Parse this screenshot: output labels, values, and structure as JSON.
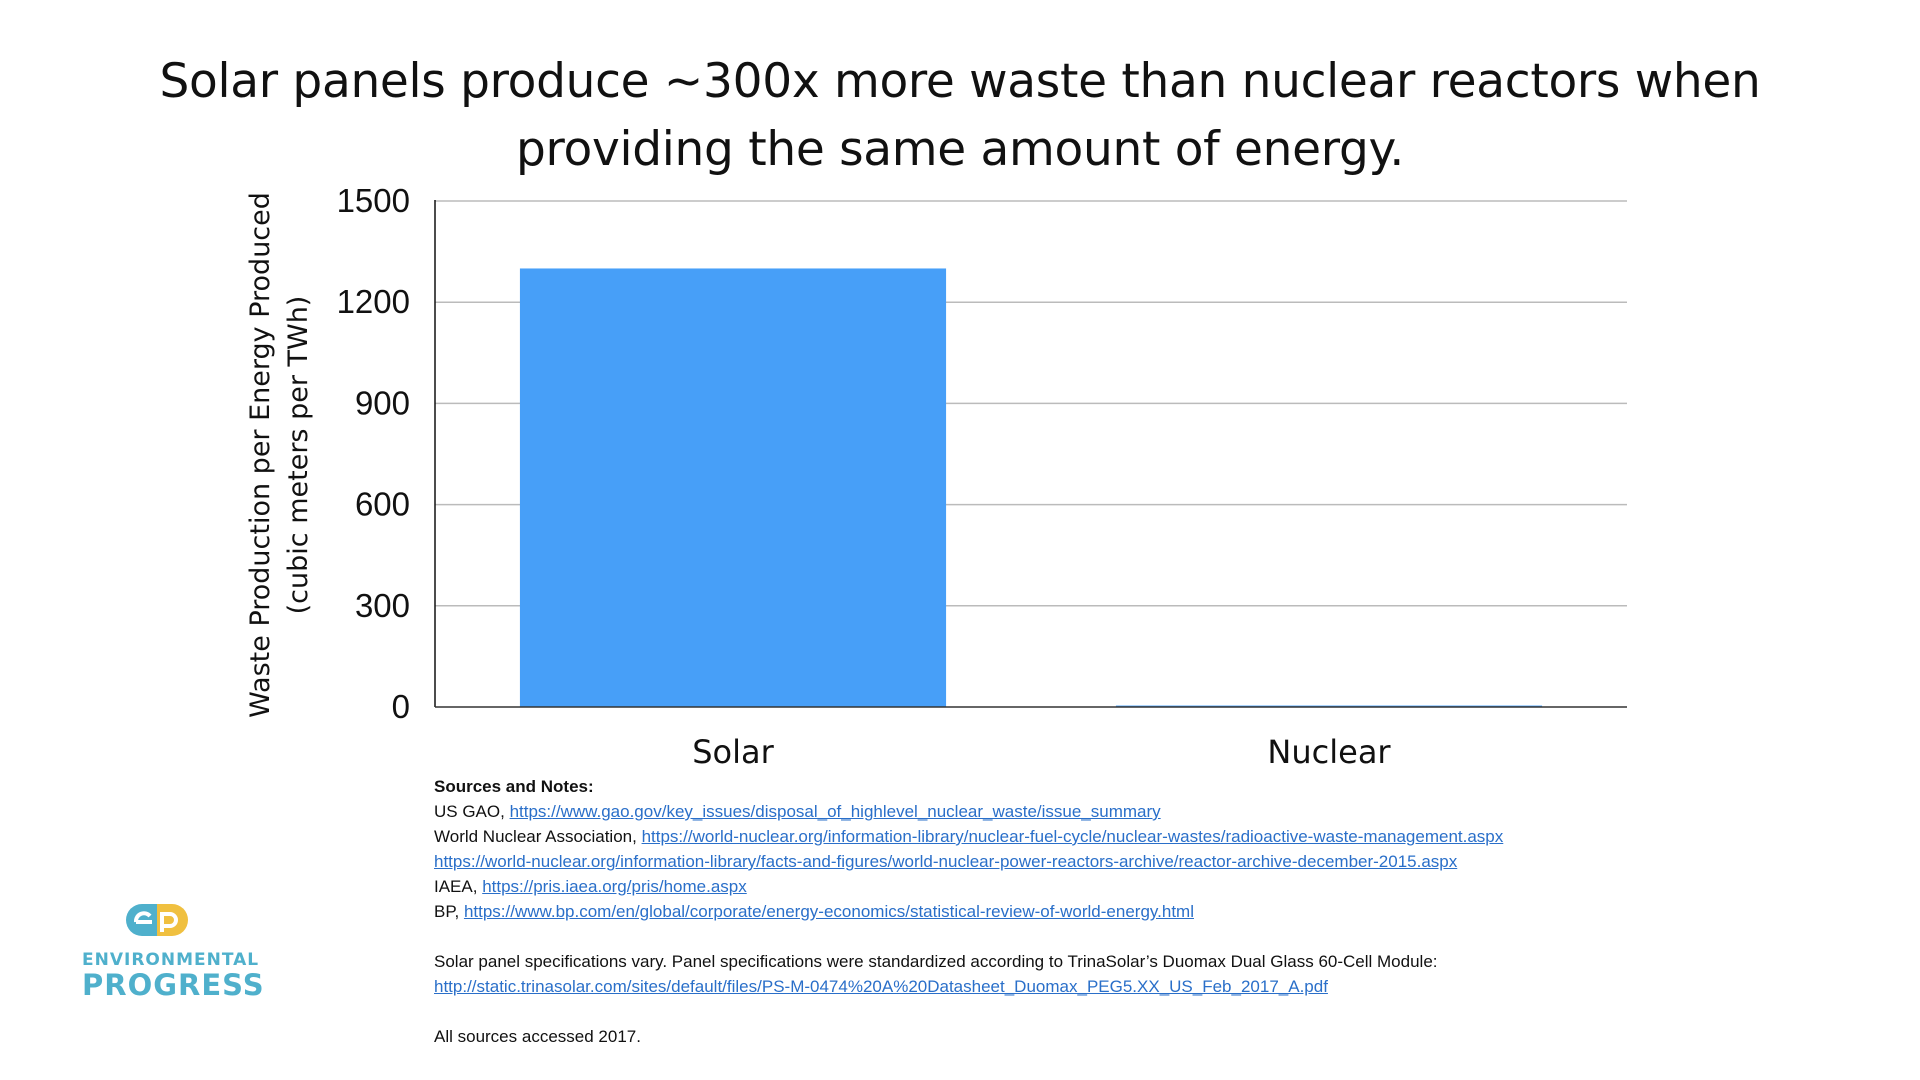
{
  "chart_data": {
    "type": "bar",
    "title": "Solar panels produce ~300x more waste than nuclear reactors when providing the same amount of energy.",
    "title_lines": [
      "Solar panels produce ~300x more waste than nuclear reactors when",
      "providing the same amount of energy."
    ],
    "categories": [
      "Solar",
      "Nuclear"
    ],
    "values": [
      1300,
      4.3
    ],
    "ylabel_lines": [
      "Waste Production per Energy Produced",
      "(cubic meters per TWh)"
    ],
    "xlabel": "",
    "ylim": [
      0,
      1500
    ],
    "yticks": [
      "0",
      "300",
      "600",
      "900",
      "1200",
      "1500"
    ],
    "grid": true,
    "bar_color": "#479ff8"
  },
  "notes": {
    "heading": "Sources and Notes:",
    "lines": [
      {
        "prefix": "US GAO, ",
        "link": "https://www.gao.gov/key_issues/disposal_of_highlevel_nuclear_waste/issue_summary"
      },
      {
        "prefix": "World Nuclear Association, ",
        "link": "https://world-nuclear.org/information-library/nuclear-fuel-cycle/nuclear-wastes/radioactive-waste-management.aspx"
      },
      {
        "prefix": "",
        "link": "https://world-nuclear.org/information-library/facts-and-figures/world-nuclear-power-reactors-archive/reactor-archive-december-2015.aspx"
      },
      {
        "prefix": "IAEA, ",
        "link": "https://pris.iaea.org/pris/home.aspx"
      },
      {
        "prefix": "BP, ",
        "link": "https://www.bp.com/en/global/corporate/energy-economics/statistical-review-of-world-energy.html"
      }
    ],
    "spec_text": "Solar panel specifications vary. Panel specifications were standardized according to TrinaSolar’s Duomax Dual Glass 60-Cell Module:",
    "spec_link": "http://static.trinasolar.com/sites/default/files/PS-M-0474%20A%20Datasheet_Duomax_PEG5.XX_US_Feb_2017_A.pdf",
    "accessed": "All sources accessed 2017."
  },
  "logo": {
    "line1": "ENVIRONMENTAL",
    "line2": "PROGRESS",
    "blue": "#4fb0cc",
    "yellow": "#f0c040"
  }
}
